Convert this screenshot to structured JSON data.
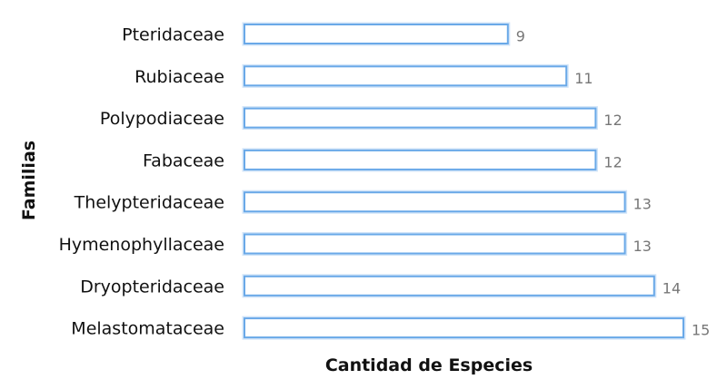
{
  "chart_data": {
    "type": "bar",
    "orientation": "horizontal",
    "categories": [
      "Pteridaceae",
      "Rubiaceae",
      "Polypodiaceae",
      "Fabaceae",
      "Thelypteridaceae",
      "Hymenophyllaceae",
      "Dryopteridaceae",
      "Melastomataceae"
    ],
    "values": [
      9,
      11,
      12,
      12,
      13,
      13,
      14,
      15
    ],
    "title": "",
    "xlabel": "Cantidad de Especies",
    "ylabel": "Familias",
    "xlim": [
      0,
      15
    ],
    "grid": false,
    "legend": "none",
    "colors": {
      "bar_fill": "#ffffff",
      "bar_stroke": "#6aa9e8",
      "value_text": "#777777"
    }
  }
}
